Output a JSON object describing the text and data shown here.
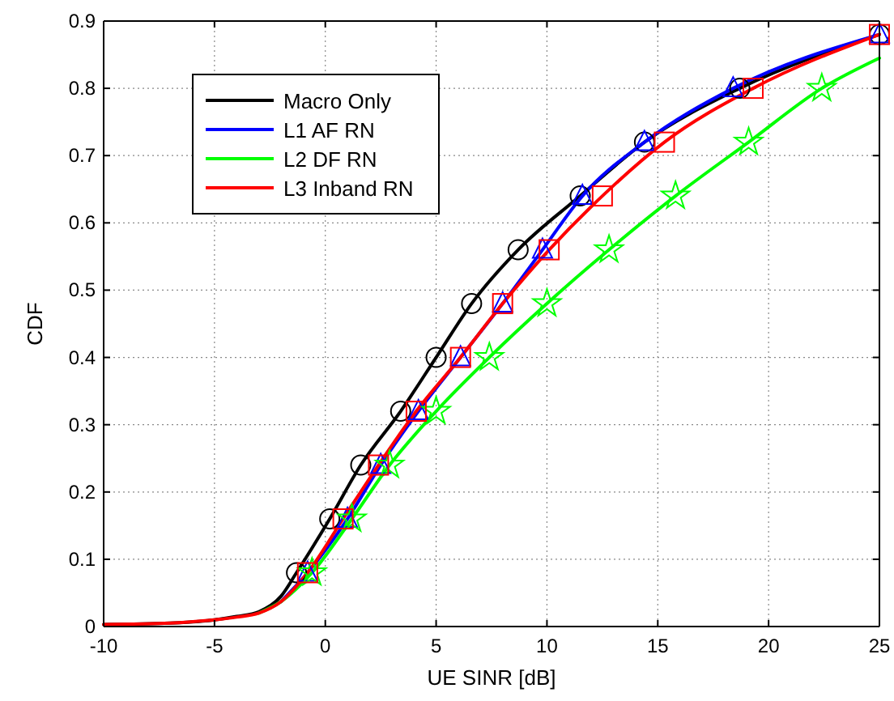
{
  "chart_data": {
    "type": "line",
    "xlabel": "UE SINR [dB]",
    "ylabel": "CDF",
    "xlim": [
      -10,
      25
    ],
    "ylim": [
      0,
      0.9
    ],
    "xticks": [
      -10,
      -5,
      0,
      5,
      10,
      15,
      20,
      25
    ],
    "yticks": [
      0,
      0.1,
      0.2,
      0.3,
      0.4,
      0.5,
      0.6,
      0.7,
      0.8,
      0.9
    ],
    "grid": true,
    "legend": "top left",
    "line_style": "solid",
    "series": [
      {
        "name": "Macro Only",
        "color": "#000000",
        "marker": "none",
        "x": [
          -10,
          -7,
          -5,
          -4,
          -3,
          -2,
          -1.3,
          0.2,
          1.6,
          3.4,
          5.0,
          6.6,
          8.7,
          11.5,
          14.4,
          18.7,
          25
        ],
        "values": [
          0.003,
          0.005,
          0.01,
          0.015,
          0.022,
          0.045,
          0.08,
          0.16,
          0.24,
          0.32,
          0.4,
          0.48,
          0.56,
          0.64,
          0.72,
          0.8,
          0.88
        ]
      },
      {
        "name": "L1 AF RN",
        "color": "#0000ff",
        "marker": "none",
        "x": [
          -2,
          -0.8,
          1.0,
          2.5,
          4.2,
          6.1,
          8.0,
          9.8,
          11.6,
          14.4,
          18.4,
          25
        ],
        "values": [
          0.037,
          0.08,
          0.16,
          0.24,
          0.32,
          0.4,
          0.48,
          0.56,
          0.64,
          0.72,
          0.8,
          0.88
        ]
      },
      {
        "name": "L2 DF RN",
        "color": "#00ff00",
        "marker": "none",
        "x": [
          -3,
          -2,
          -0.6,
          1.2,
          2.9,
          5.0,
          7.4,
          10.0,
          12.8,
          15.8,
          19.1,
          22.4,
          25
        ],
        "values": [
          0.02,
          0.037,
          0.08,
          0.16,
          0.24,
          0.32,
          0.4,
          0.48,
          0.56,
          0.64,
          0.72,
          0.8,
          0.845
        ]
      },
      {
        "name": "L3 Inband RN",
        "color": "#ff0000",
        "marker": "none",
        "x": [
          -10,
          -7,
          -5,
          -4,
          -3,
          -2,
          -0.8,
          0.8,
          2.4,
          4.1,
          6.1,
          8.0,
          10.1,
          12.5,
          15.3,
          19.3,
          25
        ],
        "values": [
          0.003,
          0.005,
          0.01,
          0.014,
          0.02,
          0.037,
          0.08,
          0.16,
          0.24,
          0.32,
          0.4,
          0.48,
          0.56,
          0.64,
          0.72,
          0.8,
          0.88
        ]
      },
      {
        "type": "scatter",
        "color": "#000000",
        "marker": "circle",
        "x": [
          -1.3,
          0.2,
          1.6,
          3.4,
          5.0,
          6.6,
          8.7,
          11.5,
          14.4,
          18.7,
          25
        ],
        "values": [
          0.08,
          0.16,
          0.24,
          0.32,
          0.4,
          0.48,
          0.56,
          0.64,
          0.72,
          0.8,
          0.88
        ]
      },
      {
        "type": "scatter",
        "color": "#0000ff",
        "marker": "triangle",
        "x": [
          -0.8,
          1.0,
          2.5,
          4.2,
          6.1,
          8.0,
          9.8,
          11.6,
          14.4,
          18.4,
          25
        ],
        "values": [
          0.08,
          0.16,
          0.24,
          0.32,
          0.4,
          0.48,
          0.56,
          0.64,
          0.72,
          0.8,
          0.88
        ]
      },
      {
        "type": "scatter",
        "color": "#00ff00",
        "marker": "star",
        "x": [
          -0.6,
          1.2,
          2.9,
          5.0,
          7.4,
          10.0,
          12.8,
          15.8,
          19.1,
          22.4
        ],
        "values": [
          0.08,
          0.16,
          0.24,
          0.32,
          0.4,
          0.48,
          0.56,
          0.64,
          0.72,
          0.8
        ]
      },
      {
        "type": "scatter",
        "color": "#ff0000",
        "marker": "square",
        "x": [
          -0.8,
          0.8,
          2.4,
          4.1,
          6.1,
          8.0,
          10.1,
          12.5,
          15.3,
          19.3,
          25
        ],
        "values": [
          0.08,
          0.16,
          0.24,
          0.32,
          0.4,
          0.48,
          0.56,
          0.64,
          0.72,
          0.8,
          0.88
        ]
      }
    ]
  }
}
